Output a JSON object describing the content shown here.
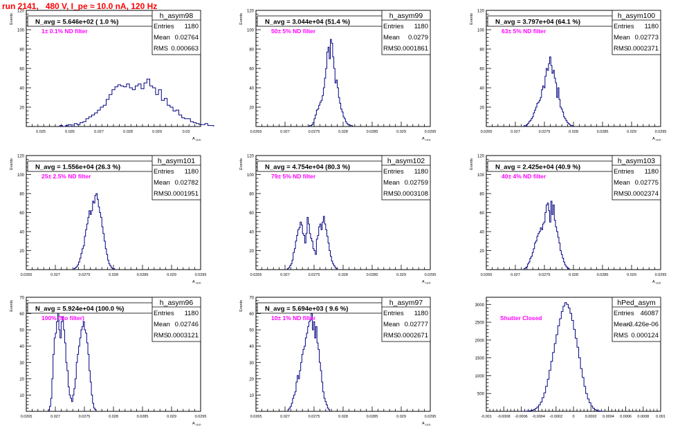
{
  "page": {
    "title": "run 2141,   480 V, I_pe ≈ 10.0 nA, 120 Hz",
    "colors": {
      "title": "#ff0000",
      "histogram": "#000080",
      "annotation": "#ff00ff",
      "frame": "#000000"
    }
  },
  "chart_data": [
    {
      "type": "bar",
      "name": "h_asym98",
      "title": "N_avg = 5.646e+02 ( 1.0 %)",
      "annotation": "1± 0.1% ND filter",
      "stats": [
        [
          "Entries",
          "1180"
        ],
        [
          "Mean",
          "0.02764"
        ],
        [
          "RMS",
          "0.000663"
        ]
      ],
      "xlabel": "A_LED",
      "ylabel": "Events",
      "xlim": [
        0.0245,
        0.0305
      ],
      "ylim": [
        0,
        120
      ],
      "xticks": [
        "0.025",
        "0.026",
        "0.027",
        "0.028",
        "0.029",
        "0.03"
      ],
      "xtick_values": [
        0.025,
        0.026,
        0.027,
        0.028,
        0.029,
        0.03
      ],
      "yticks": [
        "20",
        "40",
        "60",
        "80",
        "100",
        "120"
      ],
      "ytick_values": [
        20,
        40,
        60,
        80,
        100,
        120
      ],
      "x_start": 0.02565,
      "bin_width": 0.0001,
      "values": [
        1,
        0,
        1,
        2,
        0,
        3,
        2,
        4,
        5,
        8,
        10,
        12,
        14,
        17,
        20,
        22,
        28,
        33,
        38,
        41,
        43,
        42,
        41,
        44,
        40,
        38,
        42,
        44,
        39,
        45,
        49,
        42,
        40,
        33,
        38,
        27,
        29,
        22,
        20,
        16,
        17,
        12,
        9,
        8,
        8,
        5,
        4,
        3,
        2,
        2,
        3,
        1,
        1
      ]
    },
    {
      "type": "bar",
      "name": "h_asym99",
      "title": "N_avg = 3.044e+04 (51.4 %)",
      "annotation": "50± 5% ND filter",
      "stats": [
        [
          "Entries",
          "1180"
        ],
        [
          "Mean",
          "0.0279"
        ],
        [
          "RMS",
          "0.0001861"
        ]
      ],
      "xlabel": "A_LED",
      "ylabel": "Events",
      "xlim": [
        0.0265,
        0.0295
      ],
      "ylim": [
        0,
        120
      ],
      "xticks": [
        "0.0265",
        "0.027",
        "0.0275",
        "0.028",
        "0.0285",
        "0.029",
        "0.0295"
      ],
      "xtick_values": [
        0.0265,
        0.027,
        0.0275,
        0.028,
        0.0285,
        0.029,
        0.0295
      ],
      "yticks": [
        "20",
        "40",
        "60",
        "80",
        "100",
        "120"
      ],
      "ytick_values": [
        20,
        40,
        60,
        80,
        100,
        120
      ],
      "x_start": 0.02742,
      "bin_width": 2e-05,
      "values": [
        1,
        1,
        2,
        4,
        8,
        12,
        17,
        18,
        22,
        25,
        27,
        32,
        40,
        50,
        60,
        77,
        82,
        70,
        90,
        86,
        72,
        60,
        45,
        48,
        40,
        30,
        24,
        18,
        15,
        10,
        8,
        5,
        3,
        2,
        2,
        1,
        1
      ]
    },
    {
      "type": "bar",
      "name": "h_asym100",
      "title": "N_avg = 3.797e+04 (64.1 %)",
      "annotation": "63± 5% ND filter",
      "stats": [
        [
          "Entries",
          "1180"
        ],
        [
          "Mean",
          "0.02773"
        ],
        [
          "RMS",
          "0.0002371"
        ]
      ],
      "xlabel": "A_LED",
      "ylabel": "Events",
      "xlim": [
        0.0265,
        0.0295
      ],
      "ylim": [
        0,
        120
      ],
      "xticks": [
        "0.0265",
        "0.027",
        "0.0275",
        "0.028",
        "0.0285",
        "0.029",
        "0.0295"
      ],
      "xtick_values": [
        0.0265,
        0.027,
        0.0275,
        0.028,
        0.0285,
        0.029,
        0.0295
      ],
      "yticks": [
        "20",
        "40",
        "60",
        "80",
        "100",
        "120"
      ],
      "ytick_values": [
        20,
        40,
        60,
        80,
        100,
        120
      ],
      "x_start": 0.02715,
      "bin_width": 2e-05,
      "values": [
        1,
        0,
        2,
        3,
        5,
        6,
        8,
        10,
        14,
        17,
        20,
        24,
        25,
        27,
        30,
        38,
        42,
        40,
        52,
        60,
        58,
        65,
        72,
        63,
        55,
        58,
        50,
        45,
        30,
        40,
        28,
        20,
        18,
        15,
        10,
        8,
        6,
        4,
        3,
        2,
        1,
        1
      ]
    },
    {
      "type": "bar",
      "name": "h_asym101",
      "title": "N_avg = 1.556e+04 (26.3 %)",
      "annotation": "25± 2.5% ND filter",
      "stats": [
        [
          "Entries",
          "1180"
        ],
        [
          "Mean",
          "0.02782"
        ],
        [
          "RMS",
          "0.0001951"
        ]
      ],
      "xlabel": "A_LED",
      "ylabel": "Events",
      "xlim": [
        0.0265,
        0.0295
      ],
      "ylim": [
        0,
        120
      ],
      "xticks": [
        "0.0265",
        "0.027",
        "0.0275",
        "0.028",
        "0.0285",
        "0.029",
        "0.0295"
      ],
      "xtick_values": [
        0.0265,
        0.027,
        0.0275,
        0.028,
        0.0285,
        0.029,
        0.0295
      ],
      "yticks": [
        "20",
        "40",
        "60",
        "80",
        "100",
        "120"
      ],
      "ytick_values": [
        20,
        40,
        60,
        80,
        100,
        120
      ],
      "x_start": 0.02732,
      "bin_width": 2e-05,
      "values": [
        1,
        2,
        3,
        5,
        8,
        12,
        17,
        22,
        25,
        35,
        42,
        48,
        55,
        62,
        58,
        62,
        72,
        70,
        78,
        80,
        74,
        66,
        60,
        55,
        45,
        38,
        30,
        22,
        16,
        10,
        6,
        4,
        2,
        1,
        1
      ]
    },
    {
      "type": "bar",
      "name": "h_asym102",
      "title": "N_avg = 4.754e+04 (80.3 %)",
      "annotation": "79± 5% ND filter",
      "stats": [
        [
          "Entries",
          "1180"
        ],
        [
          "Mean",
          "0.02759"
        ],
        [
          "RMS",
          "0.0003108"
        ]
      ],
      "xlabel": "A_LED",
      "ylabel": "Events",
      "xlim": [
        0.0265,
        0.0295
      ],
      "ylim": [
        0,
        120
      ],
      "xticks": [
        "0.0265",
        "0.027",
        "0.0275",
        "0.028",
        "0.0285",
        "0.029",
        "0.0295"
      ],
      "xtick_values": [
        0.0265,
        0.027,
        0.0275,
        0.028,
        0.0285,
        0.029,
        0.0295
      ],
      "yticks": [
        "20",
        "40",
        "60",
        "80",
        "100",
        "120"
      ],
      "ytick_values": [
        20,
        40,
        60,
        80,
        100,
        120
      ],
      "x_start": 0.02704,
      "bin_width": 2e-05,
      "values": [
        1,
        2,
        4,
        6,
        10,
        18,
        22,
        30,
        36,
        42,
        44,
        50,
        47,
        38,
        36,
        28,
        38,
        55,
        48,
        38,
        33,
        30,
        22,
        20,
        16,
        32,
        36,
        45,
        48,
        42,
        50,
        56,
        48,
        42,
        35,
        28,
        20,
        14,
        9,
        6,
        4,
        2,
        1
      ]
    },
    {
      "type": "bar",
      "name": "h_asym103",
      "title": "N_avg = 2.425e+04 (40.9 %)",
      "annotation": "40± 4% ND filter",
      "stats": [
        [
          "Entries",
          "1180"
        ],
        [
          "Mean",
          "0.02775"
        ],
        [
          "RMS",
          "0.0002374"
        ]
      ],
      "xlabel": "A_LED",
      "ylabel": "Events",
      "xlim": [
        0.0265,
        0.0295
      ],
      "ylim": [
        0,
        120
      ],
      "xticks": [
        "0.0265",
        "0.027",
        "0.0275",
        "0.028",
        "0.0285",
        "0.029",
        "0.0295"
      ],
      "xtick_values": [
        0.0265,
        0.027,
        0.0275,
        0.028,
        0.0285,
        0.029,
        0.0295
      ],
      "yticks": [
        "20",
        "40",
        "60",
        "80",
        "100",
        "120"
      ],
      "ytick_values": [
        20,
        40,
        60,
        80,
        100,
        120
      ],
      "x_start": 0.02715,
      "bin_width": 2e-05,
      "values": [
        1,
        2,
        3,
        6,
        8,
        12,
        14,
        18,
        22,
        28,
        30,
        35,
        38,
        40,
        44,
        42,
        48,
        50,
        60,
        68,
        70,
        62,
        50,
        72,
        58,
        68,
        52,
        45,
        40,
        34,
        28,
        20,
        16,
        12,
        8,
        5,
        3,
        2,
        1
      ]
    },
    {
      "type": "bar",
      "name": "h_asym96",
      "title": "N_avg = 5.924e+04 (100.0 %)",
      "annotation": "100% (No filter)",
      "stats": [
        [
          "Entries",
          "1180"
        ],
        [
          "Mean",
          "0.02746"
        ],
        [
          "RMS",
          "0.0003121"
        ]
      ],
      "xlabel": "A_LED",
      "ylabel": "Events",
      "xlim": [
        0.0265,
        0.0295
      ],
      "ylim": [
        0,
        70
      ],
      "xticks": [
        "0.0265",
        "0.027",
        "0.0275",
        "0.028",
        "0.0285",
        "0.029",
        "0.0295"
      ],
      "xtick_values": [
        0.0265,
        0.027,
        0.0275,
        0.028,
        0.0285,
        0.029,
        0.0295
      ],
      "yticks": [
        "10",
        "20",
        "30",
        "40",
        "50",
        "60",
        "70"
      ],
      "ytick_values": [
        10,
        20,
        30,
        40,
        50,
        60,
        70
      ],
      "x_start": 0.02688,
      "bin_width": 2e-05,
      "values": [
        1,
        3,
        8,
        20,
        35,
        45,
        48,
        55,
        62,
        50,
        45,
        55,
        58,
        50,
        42,
        30,
        25,
        15,
        10,
        8,
        6,
        10,
        14,
        20,
        30,
        35,
        40,
        45,
        50,
        52,
        55,
        50,
        48,
        42,
        35,
        25,
        18,
        10,
        5,
        2,
        1
      ]
    },
    {
      "type": "bar",
      "name": "h_asym97",
      "title": "N_avg = 5.694e+03 ( 9.6 %)",
      "annotation": "10± 1% ND filter",
      "stats": [
        [
          "Entries",
          "1180"
        ],
        [
          "Mean",
          "0.02777"
        ],
        [
          "RMS",
          "0.0002671"
        ]
      ],
      "xlabel": "A_LED",
      "ylabel": "Events",
      "xlim": [
        0.0265,
        0.0295
      ],
      "ylim": [
        0,
        70
      ],
      "xticks": [
        "0.0265",
        "0.027",
        "0.0275",
        "0.028",
        "0.0285",
        "0.029",
        "0.0295"
      ],
      "xtick_values": [
        0.0265,
        0.027,
        0.0275,
        0.028,
        0.0285,
        0.029,
        0.0295
      ],
      "yticks": [
        "10",
        "20",
        "30",
        "40",
        "50",
        "60",
        "70"
      ],
      "ytick_values": [
        10,
        20,
        30,
        40,
        50,
        60,
        70
      ],
      "x_start": 0.02705,
      "bin_width": 2e-05,
      "values": [
        1,
        2,
        3,
        5,
        8,
        10,
        12,
        18,
        22,
        20,
        25,
        30,
        35,
        38,
        40,
        45,
        48,
        52,
        55,
        56,
        60,
        50,
        55,
        45,
        52,
        42,
        38,
        30,
        25,
        18,
        12,
        8,
        6,
        4,
        2,
        1
      ]
    },
    {
      "type": "bar",
      "name": "hPed_asym",
      "title": "",
      "annotation": "Shutter Closed",
      "stats": [
        [
          "Entries",
          "46087"
        ],
        [
          "Mean",
          "-3.426e-06"
        ],
        [
          "RMS",
          "0.000124"
        ]
      ],
      "xlabel": "",
      "ylabel": "",
      "xlim": [
        -0.001,
        0.001
      ],
      "ylim": [
        0,
        3200
      ],
      "xticks": [
        "-0.001",
        "-0.0008",
        "-0.0006",
        "-0.0004",
        "-0.0002",
        "0",
        "0.0002",
        "0.0004",
        "0.0006",
        "0.0008",
        "0.001"
      ],
      "xtick_values": [
        -0.001,
        -0.0008,
        -0.0006,
        -0.0004,
        -0.0002,
        0,
        0.0002,
        0.0004,
        0.0006,
        0.0008,
        0.001
      ],
      "yticks": [
        "500",
        "1000",
        "1500",
        "2000",
        "2500",
        "3000"
      ],
      "ytick_values": [
        500,
        1000,
        1500,
        2000,
        2500,
        3000
      ],
      "x_start": -0.00056,
      "bin_width": 2e-05,
      "values": [
        2,
        5,
        10,
        20,
        30,
        50,
        80,
        120,
        180,
        260,
        380,
        520,
        700,
        900,
        1150,
        1400,
        1650,
        1900,
        2150,
        2400,
        2600,
        2800,
        2950,
        3050,
        3000,
        2900,
        2750,
        2550,
        2300,
        2050,
        1800,
        1500,
        1200,
        950,
        700,
        500,
        350,
        240,
        150,
        90,
        50,
        25,
        12,
        5,
        2
      ]
    }
  ]
}
